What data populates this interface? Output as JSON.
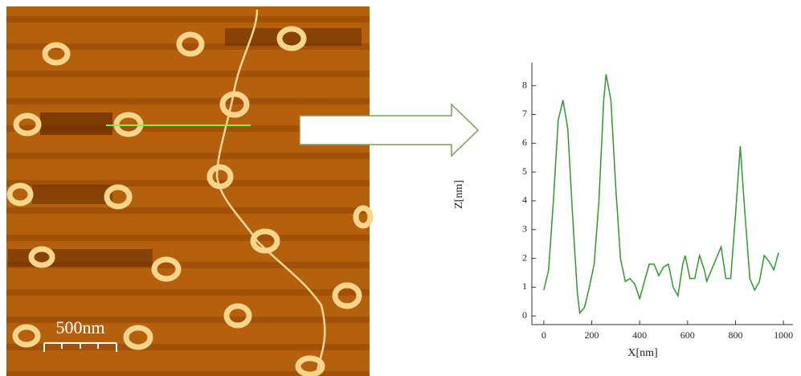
{
  "scale_bar_label": "500nm",
  "chart_data": {
    "type": "line",
    "xlabel": "X[nm]",
    "ylabel": "Z[nm]",
    "x": [
      0,
      20,
      40,
      60,
      80,
      100,
      120,
      140,
      150,
      170,
      190,
      210,
      230,
      250,
      260,
      280,
      300,
      320,
      340,
      360,
      380,
      400,
      420,
      440,
      460,
      480,
      500,
      520,
      540,
      560,
      580,
      590,
      610,
      630,
      650,
      670,
      680,
      700,
      720,
      740,
      760,
      780,
      800,
      820,
      840,
      860,
      880,
      900,
      920,
      940,
      960,
      980
    ],
    "values": [
      0.9,
      1.6,
      4,
      6.8,
      7.5,
      6.5,
      3.5,
      0.8,
      0.1,
      0.3,
      1,
      1.8,
      4,
      7.5,
      8.4,
      7.5,
      4.5,
      2,
      1.2,
      1.3,
      1.1,
      0.6,
      1.2,
      1.8,
      1.8,
      1.4,
      1.7,
      1.8,
      1,
      0.7,
      1.8,
      2.1,
      1.3,
      1.3,
      2.1,
      1.6,
      1.2,
      1.6,
      2,
      2.4,
      1.3,
      1.3,
      3.5,
      5.9,
      3.5,
      1.3,
      0.9,
      1.2,
      2.1,
      1.9,
      1.6,
      2.2
    ],
    "color": "#2e9a2e",
    "xlim": [
      -50,
      1040
    ],
    "ylim": [
      -0.3,
      8.8
    ],
    "xticks": [
      0,
      200,
      400,
      600,
      800,
      1000
    ],
    "yticks": [
      0,
      1,
      2,
      3,
      4,
      5,
      6,
      7,
      8
    ]
  }
}
